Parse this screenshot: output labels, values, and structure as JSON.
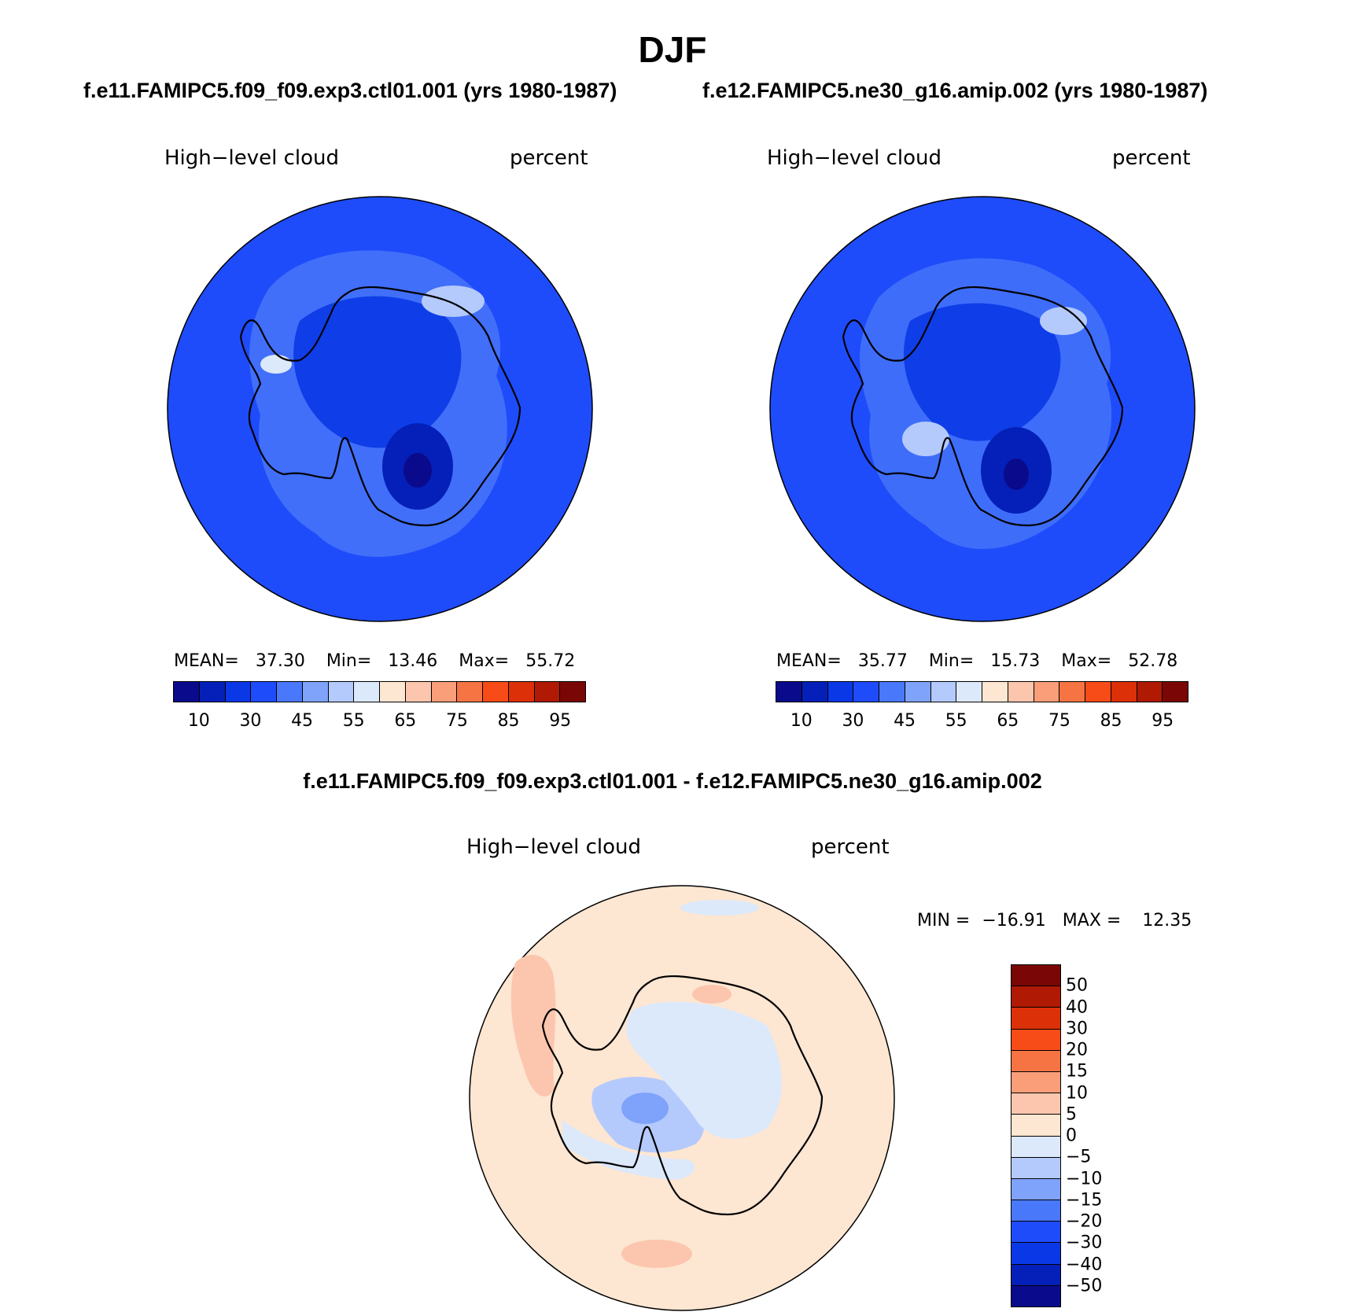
{
  "title": "DJF",
  "panels": [
    {
      "case": "f.e11.FAMIPC5.f09_f09.exp3.ctl01.001 (yrs 1980-1987)",
      "variable": "High−level cloud",
      "units": "percent",
      "stats": {
        "mean_label": "MEAN=",
        "mean": "37.30",
        "min_label": "Min=",
        "min": "13.46",
        "max_label": "Max=",
        "max": "55.72"
      },
      "background_color": "#1f4cfa"
    },
    {
      "case": "f.e12.FAMIPC5.ne30_g16.amip.002 (yrs 1980-1987)",
      "variable": "High−level cloud",
      "units": "percent",
      "stats": {
        "mean_label": "MEAN=",
        "mean": "35.77",
        "min_label": "Min=",
        "min": "15.73",
        "max_label": "Max=",
        "max": "52.78"
      },
      "background_color": "#1f4cfa"
    }
  ],
  "colorbar": {
    "colors": [
      "#0a0a8c",
      "#0520b8",
      "#0a38e6",
      "#1f4cfa",
      "#4a78fa",
      "#7fa3fb",
      "#b4cafc",
      "#dce9fb",
      "#fde6d2",
      "#fcc6ae",
      "#f99e78",
      "#f67444",
      "#f84c18",
      "#dc3008",
      "#b01a04",
      "#7a0606"
    ],
    "tick_labels": [
      "10",
      "30",
      "45",
      "55",
      "65",
      "75",
      "85",
      "95"
    ]
  },
  "difference": {
    "title": "f.e11.FAMIPC5.f09_f09.exp3.ctl01.001 - f.e12.FAMIPC5.ne30_g16.amip.002",
    "variable": "High−level cloud",
    "units": "percent",
    "stats": {
      "min_label": "MIN =",
      "min": "−16.91",
      "max_label": "MAX =",
      "max": "12.35"
    },
    "background_color": "#fde6d2",
    "colorbar": {
      "colors": [
        "#7a0606",
        "#b01a04",
        "#dc3008",
        "#f84c18",
        "#f67444",
        "#f99e78",
        "#fcc6ae",
        "#fde6d2",
        "#dce9fb",
        "#b4cafc",
        "#7fa3fb",
        "#4a78fa",
        "#1f4cfa",
        "#0a38e6",
        "#0520b8",
        "#0a0a8c"
      ],
      "tick_labels": [
        "50",
        "40",
        "30",
        "20",
        "15",
        "10",
        "5",
        "0",
        "−5",
        "−10",
        "−15",
        "−20",
        "−30",
        "−40",
        "−50"
      ]
    }
  }
}
